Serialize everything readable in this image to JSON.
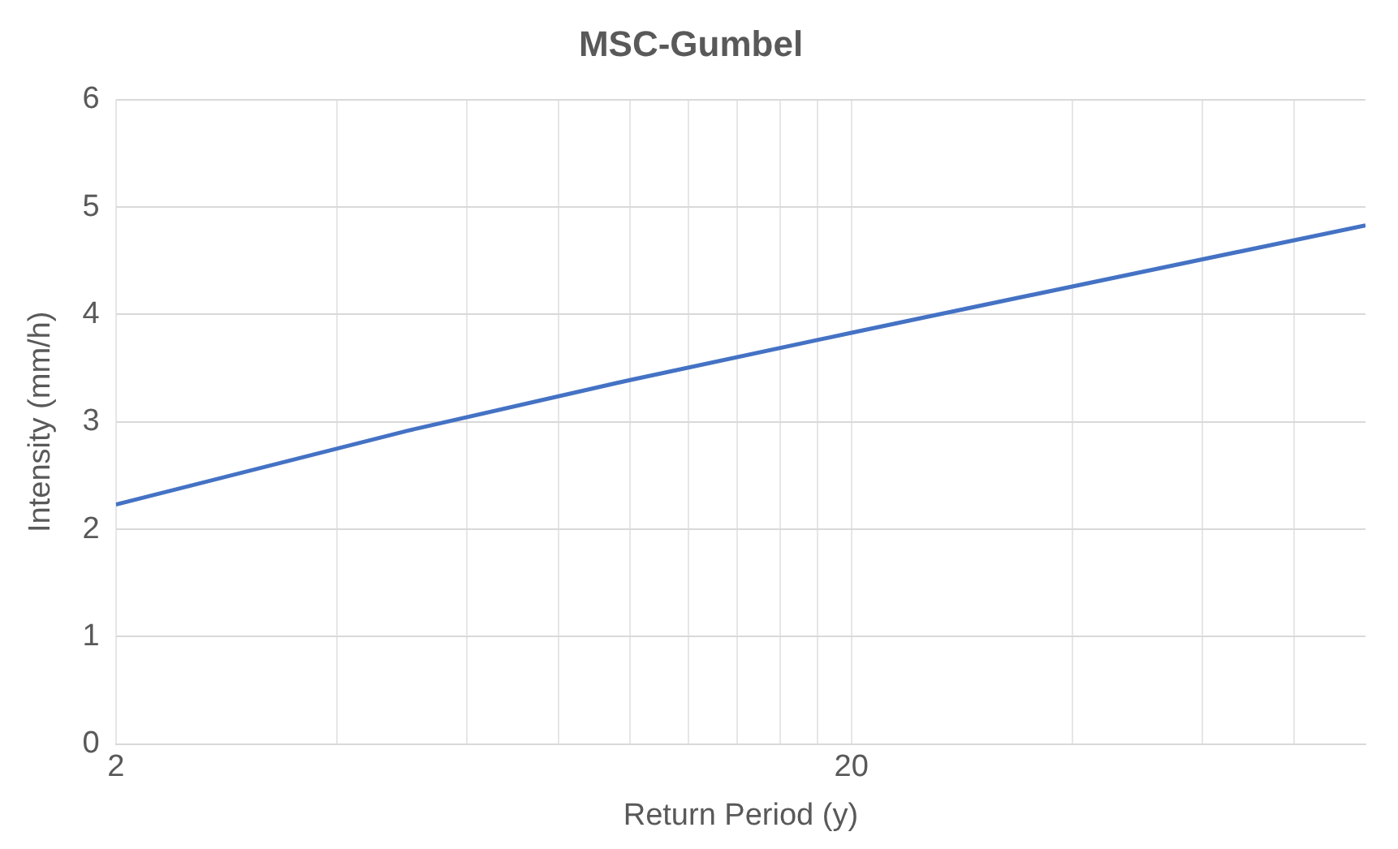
{
  "chart_data": {
    "type": "line",
    "title": "MSC-Gumbel",
    "xlabel": "Return Period (y)",
    "ylabel": "Intensity (mm/h)",
    "x": [
      2,
      5,
      10,
      20,
      25,
      50,
      100
    ],
    "series": [
      {
        "color": "#4472c4",
        "values": [
          2.23,
          2.92,
          3.39,
          3.83,
          3.97,
          4.4,
          4.83
        ]
      }
    ],
    "log": "x",
    "xlim": [
      2,
      100
    ],
    "xticks": [
      2,
      {
        "value": 4,
        "label": null
      },
      {
        "value": 6,
        "label": null
      },
      {
        "value": 8,
        "label": null
      },
      {
        "value": 10,
        "label": null
      },
      {
        "value": 12,
        "label": null
      },
      {
        "value": 14,
        "label": null
      },
      {
        "value": 16,
        "label": null
      },
      {
        "value": 18,
        "label": null
      },
      20,
      {
        "value": 40,
        "label": null
      },
      {
        "value": 60,
        "label": null
      },
      {
        "value": 80,
        "label": null
      }
    ],
    "ylim": [
      0,
      6
    ],
    "yticks": [
      0,
      1,
      2,
      3,
      4,
      5,
      6
    ],
    "grid": true,
    "marker": "none",
    "line_style": "solid"
  }
}
